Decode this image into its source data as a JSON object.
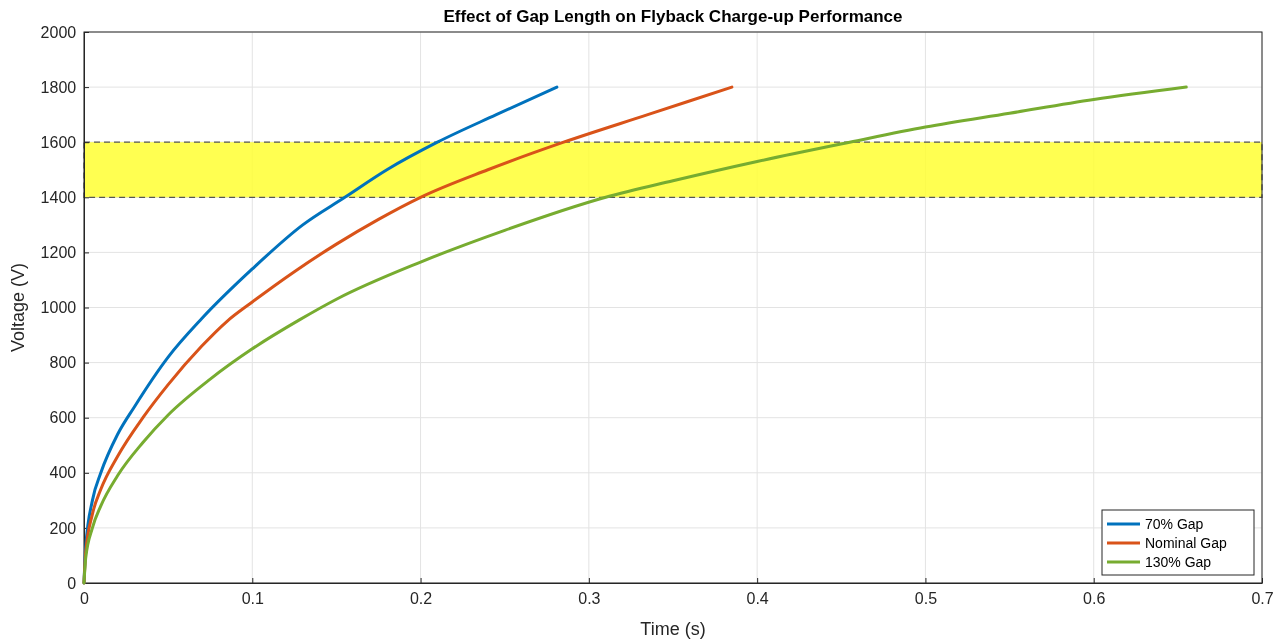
{
  "chart_data": {
    "type": "line",
    "title": "Effect of Gap Length on Flyback Charge-up Performance",
    "xlabel": "Time (s)",
    "ylabel": "Voltage (V)",
    "xlim": [
      0,
      0.7
    ],
    "xticks": [
      0,
      0.1,
      0.2,
      0.3,
      0.4,
      0.5,
      0.6,
      0.7
    ],
    "ylim": [
      0,
      2000
    ],
    "yticks": [
      0,
      200,
      400,
      600,
      800,
      1000,
      1200,
      1400,
      1600,
      1800,
      2000
    ],
    "grid": true,
    "legend": "bottom right",
    "line_style": "solid",
    "bands": [
      {
        "axis": "y",
        "from": 1400,
        "to": 1600,
        "color": "#ffff33"
      }
    ],
    "series": [
      {
        "name": "70% Gap",
        "color": "#0072bd",
        "x": [
          0,
          0.001,
          0.005,
          0.01,
          0.02,
          0.03,
          0.05,
          0.07,
          0.1,
          0.13,
          0.155,
          0.18,
          0.21,
          0.245,
          0.281
        ],
        "values": [
          0,
          130,
          300,
          400,
          540,
          640,
          820,
          960,
          1140,
          1300,
          1400,
          1500,
          1600,
          1700,
          1800
        ]
      },
      {
        "name": "Nominal Gap",
        "color": "#d95319",
        "x": [
          0,
          0.001,
          0.005,
          0.01,
          0.02,
          0.035,
          0.05,
          0.07,
          0.085,
          0.1,
          0.125,
          0.15,
          0.175,
          0.2,
          0.24,
          0.285,
          0.335,
          0.385
        ],
        "values": [
          0,
          110,
          250,
          340,
          460,
          600,
          720,
          860,
          950,
          1020,
          1130,
          1230,
          1320,
          1400,
          1500,
          1600,
          1700,
          1800
        ]
      },
      {
        "name": "130% Gap",
        "color": "#77ac30",
        "x": [
          0,
          0.001,
          0.005,
          0.01,
          0.02,
          0.035,
          0.05,
          0.075,
          0.1,
          0.128,
          0.15,
          0.2,
          0.25,
          0.31,
          0.35,
          0.4,
          0.455,
          0.5,
          0.55,
          0.6,
          0.655
        ],
        "values": [
          0,
          90,
          200,
          280,
          390,
          510,
          610,
          740,
          850,
          955,
          1030,
          1165,
          1280,
          1400,
          1460,
          1530,
          1600,
          1655,
          1705,
          1755,
          1800
        ]
      }
    ]
  }
}
